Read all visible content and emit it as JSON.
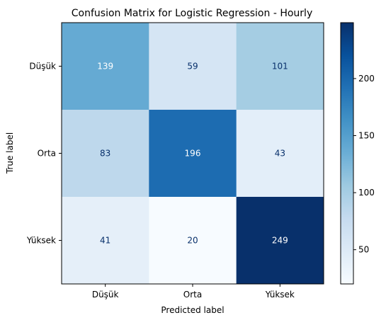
{
  "chart_data": {
    "type": "heatmap",
    "title": "Confusion Matrix for Logistic Regression - Hourly",
    "xlabel": "Predicted label",
    "ylabel": "True label",
    "x_categories": [
      "Düşük",
      "Orta",
      "Yüksek"
    ],
    "y_categories": [
      "Düşük",
      "Orta",
      "Yüksek"
    ],
    "values": [
      [
        139,
        59,
        101
      ],
      [
        83,
        196,
        43
      ],
      [
        41,
        20,
        249
      ]
    ],
    "colormap": "Blues",
    "color_range": [
      20,
      249
    ],
    "colorbar": {
      "ticks": [
        50,
        100,
        150,
        200
      ],
      "labels": [
        "50",
        "100",
        "150",
        "200"
      ]
    }
  }
}
